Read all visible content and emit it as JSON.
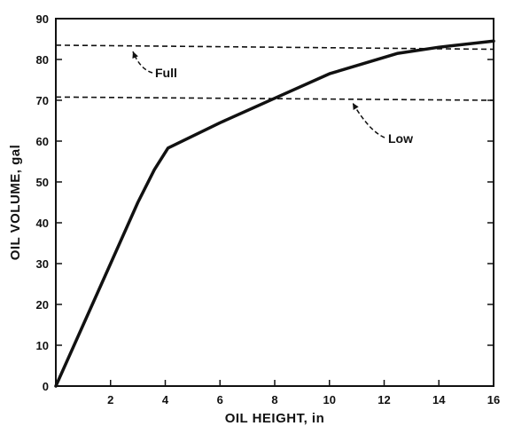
{
  "chart_data": {
    "type": "line",
    "xlabel": "OIL HEIGHT, in",
    "ylabel": "OIL VOLUME, gal",
    "xlim": [
      0,
      16
    ],
    "ylim": [
      0,
      90
    ],
    "x_ticks": [
      2,
      4,
      6,
      8,
      10,
      12,
      14,
      16
    ],
    "y_ticks": [
      0,
      10,
      20,
      30,
      40,
      50,
      60,
      70,
      80,
      90
    ],
    "grid": false,
    "series": [
      {
        "style": "solid",
        "x": [
          0,
          1,
          2,
          3,
          3.6,
          4.1,
          6,
          8,
          10,
          12.5,
          14,
          16
        ],
        "y": [
          0,
          15,
          30,
          45,
          53,
          58.3,
          64.5,
          70.5,
          76.5,
          81.5,
          83,
          84.5
        ]
      }
    ],
    "reference_lines": [
      {
        "label": "Full",
        "y_start": 83.5,
        "y_end": 82.5,
        "style": "dashed"
      },
      {
        "label": "Low",
        "y_start": 70.8,
        "y_end": 70.0,
        "style": "dashed"
      }
    ],
    "annotations": [
      {
        "text": "Full",
        "target_x": 2.7,
        "target_y": 83.4
      },
      {
        "text": "Low",
        "target_x": 10.8,
        "target_y": 70.4
      }
    ]
  }
}
